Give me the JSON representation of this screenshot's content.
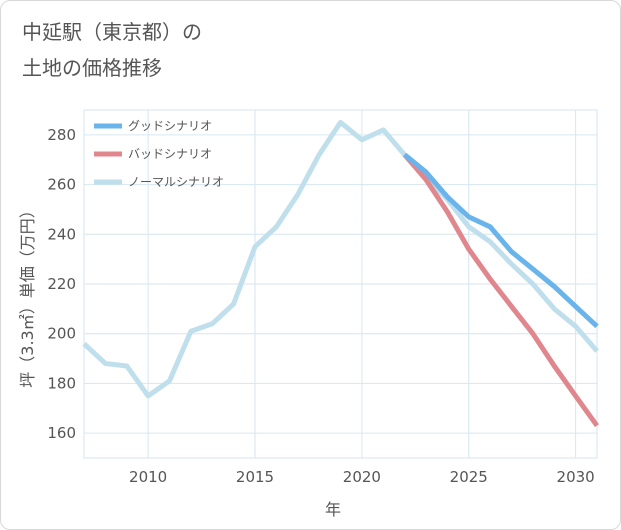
{
  "title_lines": [
    "中延駅（東京都）の",
    "土地の価格推移"
  ],
  "chart_data": {
    "type": "line",
    "title": "中延駅（東京都）の土地の価格推移",
    "xlabel": "年",
    "ylabel": "坪（3.3㎡）単価（万円）",
    "xlim": [
      2007,
      2031
    ],
    "ylim": [
      150,
      290
    ],
    "xticks": [
      2010,
      2015,
      2020,
      2025,
      2030
    ],
    "yticks": [
      160,
      180,
      200,
      220,
      240,
      260,
      280
    ],
    "grid": true,
    "legend_position": "top-left",
    "series": [
      {
        "name": "グッドシナリオ",
        "color": "#6ab4ec",
        "x": [
          2022,
          2023,
          2024,
          2025,
          2026,
          2027,
          2028,
          2029,
          2030,
          2031
        ],
        "y": [
          272,
          265,
          255,
          247,
          243,
          233,
          226,
          219,
          211,
          203
        ]
      },
      {
        "name": "バッドシナリオ",
        "color": "#e0878e",
        "x": [
          2022,
          2023,
          2024,
          2025,
          2026,
          2027,
          2028,
          2029,
          2030,
          2031
        ],
        "y": [
          272,
          262,
          249,
          234,
          222,
          211,
          200,
          187,
          175,
          163
        ]
      },
      {
        "name": "ノーマルシナリオ",
        "color": "#c0dfec",
        "x": [
          2007,
          2008,
          2009,
          2010,
          2011,
          2012,
          2013,
          2014,
          2015,
          2016,
          2017,
          2018,
          2019,
          2020,
          2021,
          2022,
          2023,
          2024,
          2025,
          2026,
          2027,
          2028,
          2029,
          2030,
          2031
        ],
        "y": [
          196,
          188,
          187,
          175,
          181,
          201,
          204,
          212,
          235,
          243,
          256,
          272,
          285,
          278,
          282,
          272,
          263,
          254,
          243,
          237,
          228,
          220,
          210,
          203,
          193
        ]
      }
    ]
  }
}
